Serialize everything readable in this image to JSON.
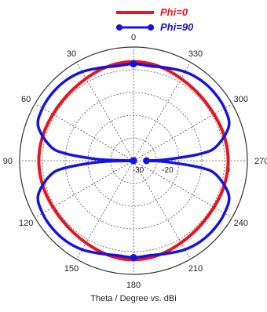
{
  "chart_data": {
    "type": "line",
    "subtype": "polar",
    "xlabel": "Theta / Degree vs. dBi",
    "theta_ticks": [
      "0",
      "30",
      "60",
      "90",
      "120",
      "150",
      "180",
      "210",
      "240",
      "270",
      "300",
      "330"
    ],
    "radial_ticks": [
      "-30",
      "-20",
      "0"
    ],
    "r_range": [
      -30,
      5
    ],
    "legend_position": "top",
    "grid": true,
    "series": [
      {
        "name": "Phi=0",
        "color": "#e8141e",
        "marker": "none",
        "theta": [
          0,
          10,
          20,
          30,
          40,
          50,
          60,
          70,
          80,
          90,
          100,
          110,
          120,
          130,
          140,
          150,
          160,
          170,
          180,
          190,
          200,
          210,
          220,
          230,
          240,
          250,
          260,
          270,
          280,
          290,
          300,
          310,
          320,
          330,
          340,
          350
        ],
        "r": [
          0.5,
          0.3,
          -0.2,
          -0.8,
          -1.2,
          -1.4,
          -1.4,
          -1.2,
          -1.0,
          -0.9,
          -1.0,
          -1.2,
          -1.4,
          -1.4,
          -1.2,
          -0.8,
          -0.2,
          0.3,
          0.5,
          0.3,
          -0.2,
          -0.8,
          -1.2,
          -1.4,
          -1.4,
          -1.2,
          -1.0,
          -0.9,
          -1.0,
          -1.2,
          -1.4,
          -1.4,
          -1.2,
          -0.8,
          -0.2,
          0.3
        ]
      },
      {
        "name": "Phi=90",
        "color": "#1414e0",
        "marker": "circle",
        "theta": [
          0,
          10,
          20,
          30,
          40,
          50,
          60,
          70,
          80,
          84,
          88,
          90,
          92,
          96,
          100,
          110,
          120,
          130,
          140,
          150,
          160,
          170,
          180,
          190,
          200,
          210,
          220,
          230,
          240,
          250,
          260,
          264,
          268,
          270,
          272,
          276,
          280,
          290,
          300,
          310,
          320,
          330,
          340,
          350
        ],
        "r": [
          -0.2,
          -0.4,
          0.4,
          1.6,
          2.3,
          2.5,
          2.3,
          1.2,
          -4,
          -9,
          -20,
          -30,
          -20,
          -9,
          -4,
          1.2,
          2.3,
          2.5,
          2.3,
          1.6,
          0.4,
          -0.4,
          -0.2,
          -0.4,
          0.4,
          1.6,
          2.3,
          2.5,
          2.3,
          1.2,
          -4,
          -9,
          -20,
          -26,
          -20,
          -9,
          -4,
          1.2,
          2.3,
          2.5,
          2.3,
          1.6,
          0.4,
          -0.4
        ]
      }
    ],
    "marker_points": [
      {
        "series": "Phi=90",
        "theta": 0,
        "r": -0.2
      },
      {
        "series": "Phi=90",
        "theta": 180,
        "r": -0.2
      },
      {
        "series": "Phi=90",
        "theta": 90,
        "r": -30
      },
      {
        "series": "Phi=90",
        "theta": 270,
        "r": -26
      }
    ]
  }
}
